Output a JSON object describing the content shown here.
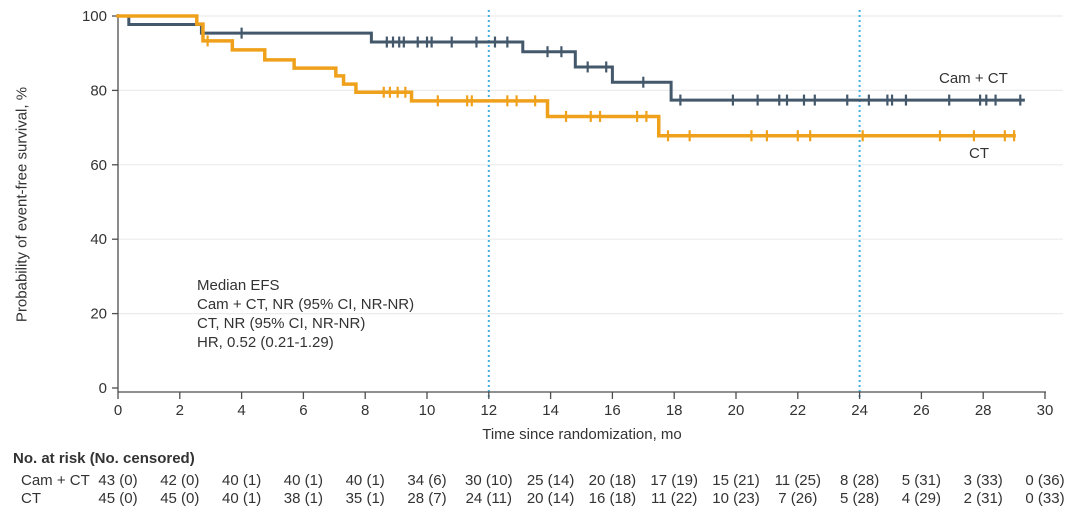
{
  "figure": {
    "background": "#ffffff",
    "text_color": "#333333",
    "axis_color": "#4d4d4d",
    "grid_color": "#ececec",
    "reference_line_color": "#41b1e4"
  },
  "chart_data": {
    "type": "line",
    "subtype": "kaplan-meier-step",
    "title": "",
    "xlabel": "Time since randomization, mo",
    "ylabel": "Probability of event-free survival, %",
    "xlim": [
      0,
      30
    ],
    "ylim": [
      0,
      100
    ],
    "xticks": [
      0,
      2,
      4,
      6,
      8,
      10,
      12,
      14,
      16,
      18,
      20,
      22,
      24,
      26,
      28,
      30
    ],
    "yticks": [
      0,
      20,
      40,
      60,
      80,
      100
    ],
    "grid": "horizontal",
    "reference_lines_x": [
      12,
      24
    ],
    "legend_position": "curve-end-labels",
    "series": [
      {
        "name": "Cam + CT",
        "color": "#44586b",
        "line_width": 3,
        "steps": [
          [
            0,
            100
          ],
          [
            0.35,
            97.7
          ],
          [
            2.7,
            95.4
          ],
          [
            8.2,
            93.0
          ],
          [
            13.1,
            90.4
          ],
          [
            14.8,
            86.3
          ],
          [
            16.0,
            82.2
          ],
          [
            17.9,
            77.4
          ]
        ],
        "end_t": 29.3,
        "censors": [
          [
            4.0,
            95.4
          ],
          [
            8.7,
            93.0
          ],
          [
            8.9,
            93.0
          ],
          [
            9.1,
            93.0
          ],
          [
            9.25,
            93.0
          ],
          [
            9.7,
            93.0
          ],
          [
            10.0,
            93.0
          ],
          [
            10.15,
            93.0
          ],
          [
            10.8,
            93.0
          ],
          [
            11.6,
            93.0
          ],
          [
            12.2,
            93.0
          ],
          [
            12.6,
            93.0
          ],
          [
            13.9,
            90.4
          ],
          [
            14.35,
            90.4
          ],
          [
            15.2,
            86.3
          ],
          [
            15.8,
            86.3
          ],
          [
            17.0,
            82.2
          ],
          [
            18.2,
            77.4
          ],
          [
            19.9,
            77.4
          ],
          [
            20.7,
            77.4
          ],
          [
            21.4,
            77.4
          ],
          [
            21.65,
            77.4
          ],
          [
            22.2,
            77.4
          ],
          [
            22.55,
            77.4
          ],
          [
            23.6,
            77.4
          ],
          [
            24.3,
            77.4
          ],
          [
            24.9,
            77.4
          ],
          [
            25.05,
            77.4
          ],
          [
            25.5,
            77.4
          ],
          [
            26.9,
            77.4
          ],
          [
            27.9,
            77.4
          ],
          [
            28.1,
            77.4
          ],
          [
            28.4,
            77.4
          ],
          [
            29.2,
            77.4
          ]
        ]
      },
      {
        "name": "CT",
        "color": "#f0a11c",
        "line_width": 3.5,
        "steps": [
          [
            0,
            100
          ],
          [
            2.55,
            97.8
          ],
          [
            2.75,
            93.3
          ],
          [
            3.7,
            90.9
          ],
          [
            4.75,
            88.2
          ],
          [
            5.7,
            86.0
          ],
          [
            7.05,
            83.9
          ],
          [
            7.3,
            81.7
          ],
          [
            7.7,
            79.5
          ],
          [
            9.5,
            77.2
          ],
          [
            13.9,
            73.0
          ],
          [
            17.5,
            67.8
          ]
        ],
        "end_t": 29.0,
        "censors": [
          [
            2.9,
            93.3
          ],
          [
            8.6,
            79.5
          ],
          [
            8.8,
            79.5
          ],
          [
            9.05,
            79.5
          ],
          [
            9.3,
            79.5
          ],
          [
            10.35,
            77.2
          ],
          [
            11.3,
            77.2
          ],
          [
            11.45,
            77.2
          ],
          [
            12.6,
            77.2
          ],
          [
            12.9,
            77.2
          ],
          [
            13.5,
            77.2
          ],
          [
            14.5,
            73.0
          ],
          [
            15.3,
            73.0
          ],
          [
            15.6,
            73.0
          ],
          [
            16.8,
            73.0
          ],
          [
            17.1,
            73.0
          ],
          [
            17.8,
            67.8
          ],
          [
            18.5,
            67.8
          ],
          [
            20.5,
            67.8
          ],
          [
            21.0,
            67.8
          ],
          [
            22.0,
            67.8
          ],
          [
            22.4,
            67.8
          ],
          [
            24.1,
            67.8
          ],
          [
            26.6,
            67.8
          ],
          [
            27.7,
            67.8
          ],
          [
            28.7,
            67.8
          ],
          [
            29.0,
            67.8
          ]
        ]
      }
    ],
    "annotation": {
      "lines": [
        "Median EFS",
        "Cam + CT, NR (95% CI, NR-NR)",
        "CT, NR (95% CI, NR-NR)",
        "HR, 0.52 (0.21-1.29)"
      ]
    }
  },
  "risk_table": {
    "header": "No. at risk (No. censored)",
    "months": [
      0,
      2,
      4,
      6,
      8,
      10,
      12,
      14,
      16,
      18,
      20,
      22,
      24,
      26,
      28,
      30
    ],
    "rows": [
      {
        "label": "Cam + CT",
        "values": [
          "43 (0)",
          "42 (0)",
          "40 (1)",
          "40 (1)",
          "40 (1)",
          "34 (6)",
          "30 (10)",
          "25 (14)",
          "20 (18)",
          "17 (19)",
          "15 (21)",
          "11 (25)",
          "8 (28)",
          "5 (31)",
          "3 (33)",
          "0 (36)"
        ]
      },
      {
        "label": "CT",
        "values": [
          "45 (0)",
          "45 (0)",
          "40 (1)",
          "38 (1)",
          "35 (1)",
          "28 (7)",
          "24 (11)",
          "20 (14)",
          "16 (18)",
          "11 (22)",
          "10 (23)",
          "7 (26)",
          "5 (28)",
          "4 (29)",
          "2 (31)",
          "0 (33)"
        ]
      }
    ]
  }
}
